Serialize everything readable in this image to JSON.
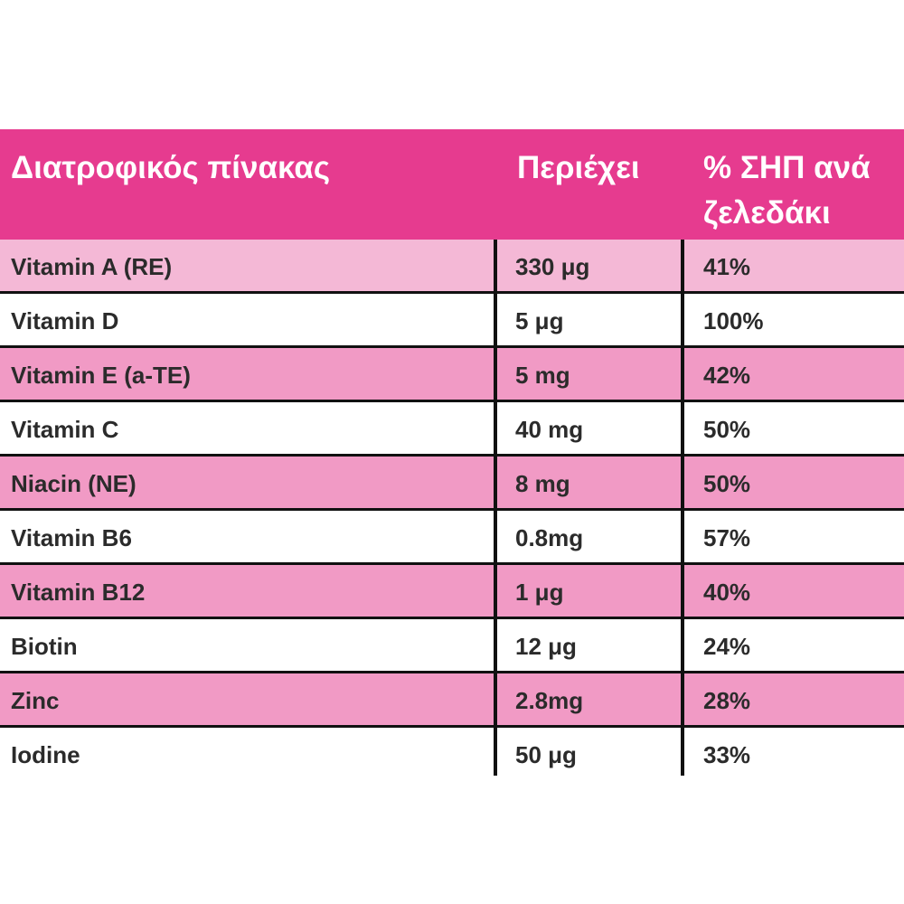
{
  "header": {
    "col1": "Διατροφικός πίνακας",
    "col2": "Περιέχει",
    "col3": "% ΣΗΠ ανά ζελεδάκι"
  },
  "colors": {
    "header_bg": "#e63b8f",
    "row_light": "#f4b8d6",
    "row_pink": "#f19ac5",
    "row_white": "#ffffff"
  },
  "rows": [
    {
      "name": "Vitamin A (RE)",
      "amount": "330 μg",
      "percent": "41%"
    },
    {
      "name": "Vitamin D",
      "amount": "5 μg",
      "percent": "100%"
    },
    {
      "name": "Vitamin E (a-TE)",
      "amount": "5 mg",
      "percent": "42%"
    },
    {
      "name": "Vitamin C",
      "amount": "40 mg",
      "percent": "50%"
    },
    {
      "name": "Niacin (NE)",
      "amount": "8 mg",
      "percent": "50%"
    },
    {
      "name": "Vitamin B6",
      "amount": "0.8mg",
      "percent": "57%"
    },
    {
      "name": "Vitamin B12",
      "amount": "1 μg",
      "percent": "40%"
    },
    {
      "name": "Biotin",
      "amount": "12 μg",
      "percent": "24%"
    },
    {
      "name": "Zinc",
      "amount": "2.8mg",
      "percent": "28%"
    },
    {
      "name": "Iodine",
      "amount": "50 μg",
      "percent": "33%"
    }
  ]
}
